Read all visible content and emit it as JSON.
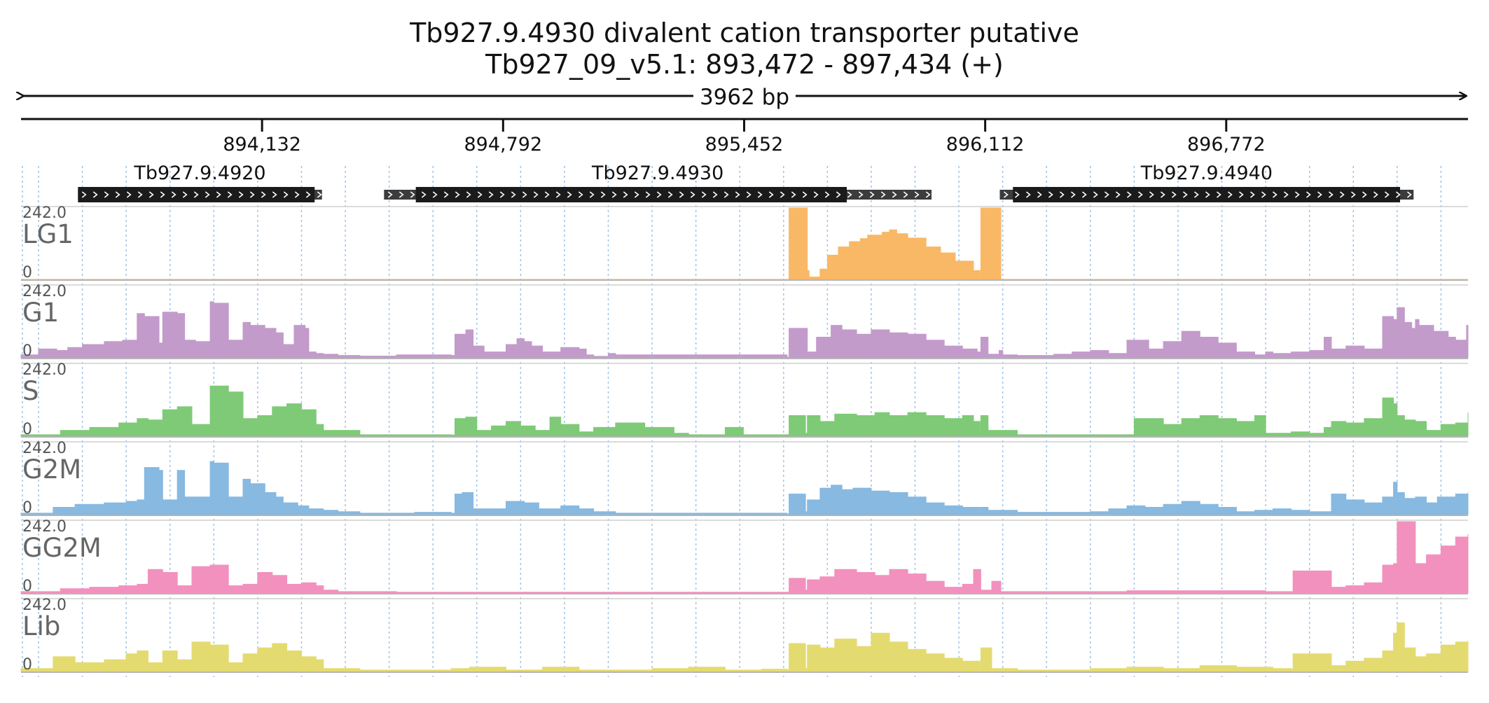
{
  "chart_data": {
    "type": "area",
    "title": "Tb927.9.4930  divalent cation transporter  putative",
    "subtitle": "Tb927_09_v5.1: 893,472 - 897,434 (+)",
    "span_label": "3962 bp",
    "xlim": [
      893472,
      897434
    ],
    "ticks": [
      {
        "value": 894132,
        "label": "894,132"
      },
      {
        "value": 894792,
        "label": "894,792"
      },
      {
        "value": 895452,
        "label": "895,452"
      },
      {
        "value": 896112,
        "label": "896,112"
      },
      {
        "value": 896772,
        "label": "896,772"
      }
    ],
    "grid": true,
    "genes": [
      {
        "name": "Tb927.9.4920",
        "start": 893628,
        "end": 894296,
        "cds_start": 893628,
        "cds_end": 894276,
        "strand": "+"
      },
      {
        "name": "Tb927.9.4930",
        "start": 894466,
        "end": 895965,
        "cds_start": 894553,
        "cds_end": 895733,
        "strand": "+"
      },
      {
        "name": "Tb927.9.4940",
        "start": 896152,
        "end": 897285,
        "cds_start": 896188,
        "cds_end": 897248,
        "strand": "+"
      }
    ],
    "tracks": [
      {
        "name": "LG1",
        "color": "#F9B865",
        "max_label": "242.0",
        "min_label": "0",
        "x": [
          893472,
          895570,
          895575,
          895610,
          895625,
          895630,
          895660,
          895680,
          895710,
          895740,
          895770,
          895790,
          895830,
          895850,
          895870,
          895900,
          895950,
          895990,
          896030,
          896080,
          896098,
          896100,
          896150,
          896155,
          897434
        ],
        "values": [
          0,
          0,
          242,
          242,
          30,
          8,
          35,
          82,
          110,
          128,
          138,
          150,
          160,
          168,
          155,
          140,
          110,
          90,
          62,
          30,
          8,
          242,
          242,
          0,
          0
        ]
      },
      {
        "name": "G1",
        "color": "#C39BCB",
        "max_label": "242.0",
        "min_label": "0",
        "x": [
          893472,
          893510,
          893520,
          893570,
          893600,
          893640,
          893700,
          893750,
          893790,
          893810,
          893850,
          893860,
          893900,
          893920,
          893950,
          893990,
          894000,
          894040,
          894080,
          894100,
          894140,
          894170,
          894190,
          894220,
          894250,
          894260,
          894280,
          894300,
          894340,
          894400,
          894500,
          894550,
          894650,
          894660,
          894690,
          894710,
          894740,
          894800,
          894830,
          894850,
          894870,
          894900,
          894950,
          895000,
          895020,
          895040,
          895080,
          895100,
          895570,
          895575,
          895620,
          895625,
          895650,
          895690,
          895720,
          895760,
          895800,
          895850,
          895900,
          895950,
          896000,
          896050,
          896090,
          896100,
          896120,
          896150,
          896160,
          896200,
          896250,
          896300,
          896350,
          896400,
          896450,
          896500,
          896560,
          896600,
          896650,
          896700,
          896750,
          896800,
          896850,
          896880,
          896900,
          896950,
          897000,
          897040,
          897060,
          897100,
          897150,
          897200,
          897230,
          897240,
          897260,
          897280,
          897290,
          897300,
          897340,
          897380,
          897400,
          897430,
          897434
        ],
        "values": [
          10,
          10,
          30,
          25,
          35,
          45,
          55,
          60,
          150,
          140,
          50,
          155,
          150,
          60,
          55,
          190,
          185,
          60,
          120,
          110,
          100,
          85,
          45,
          110,
          100,
          20,
          15,
          12,
          8,
          6,
          10,
          10,
          8,
          80,
          95,
          40,
          20,
          45,
          65,
          55,
          40,
          20,
          35,
          30,
          10,
          5,
          15,
          10,
          2,
          100,
          100,
          20,
          70,
          110,
          95,
          80,
          95,
          85,
          80,
          60,
          40,
          30,
          20,
          70,
          12,
          25,
          10,
          8,
          8,
          12,
          20,
          25,
          15,
          60,
          30,
          55,
          90,
          70,
          50,
          20,
          10,
          20,
          15,
          20,
          25,
          70,
          30,
          40,
          30,
          140,
          130,
          170,
          120,
          100,
          130,
          110,
          90,
          70,
          60,
          110,
          110
        ]
      },
      {
        "name": "S",
        "color": "#7FCA77",
        "max_label": "242.0",
        "min_label": "0",
        "x": [
          893472,
          893520,
          893580,
          893660,
          893740,
          893790,
          893820,
          893860,
          893900,
          893940,
          893990,
          894040,
          894080,
          894120,
          894160,
          894200,
          894240,
          894280,
          894300,
          894400,
          894500,
          894650,
          894660,
          894690,
          894720,
          894760,
          894800,
          894840,
          894880,
          894920,
          894950,
          895000,
          895040,
          895100,
          895180,
          895260,
          895300,
          895350,
          895400,
          895450,
          895500,
          895570,
          895575,
          895620,
          895625,
          895660,
          895700,
          895760,
          895810,
          895850,
          895900,
          895950,
          896000,
          896050,
          896080,
          896098,
          896100,
          896120,
          896200,
          896300,
          896400,
          896500,
          896520,
          896560,
          896600,
          896650,
          896700,
          896750,
          896800,
          896850,
          896880,
          896950,
          897000,
          897040,
          897060,
          897100,
          897150,
          897200,
          897230,
          897240,
          897260,
          897290,
          897320,
          897360,
          897400,
          897434
        ],
        "values": [
          5,
          5,
          20,
          30,
          45,
          60,
          55,
          90,
          100,
          40,
          170,
          150,
          60,
          70,
          100,
          110,
          90,
          40,
          20,
          5,
          5,
          4,
          60,
          65,
          20,
          35,
          50,
          35,
          20,
          65,
          40,
          15,
          30,
          45,
          30,
          10,
          5,
          5,
          30,
          5,
          5,
          5,
          70,
          10,
          70,
          50,
          75,
          70,
          80,
          70,
          80,
          70,
          60,
          70,
          50,
          10,
          70,
          20,
          5,
          5,
          5,
          5,
          60,
          60,
          40,
          60,
          70,
          60,
          50,
          70,
          10,
          15,
          10,
          30,
          50,
          45,
          60,
          130,
          110,
          70,
          55,
          50,
          20,
          40,
          45,
          80
        ]
      },
      {
        "name": "G2M",
        "color": "#87B9E1",
        "max_label": "242.0",
        "min_label": "0",
        "x": [
          893472,
          893520,
          893560,
          893620,
          893700,
          893760,
          893790,
          893810,
          893850,
          893860,
          893900,
          893920,
          893950,
          893990,
          894000,
          894040,
          894080,
          894100,
          894140,
          894170,
          894190,
          894230,
          894260,
          894300,
          894340,
          894400,
          894500,
          894550,
          894650,
          894660,
          894680,
          894710,
          894740,
          894800,
          894850,
          894890,
          894950,
          895000,
          895040,
          895100,
          895400,
          895570,
          895575,
          895620,
          895625,
          895660,
          895690,
          895720,
          895750,
          895800,
          895850,
          895900,
          895950,
          896000,
          896050,
          896098,
          896100,
          896120,
          896200,
          896300,
          896400,
          896450,
          896500,
          896550,
          896600,
          896650,
          896700,
          896750,
          896800,
          896850,
          896900,
          896950,
          897000,
          897060,
          897100,
          897150,
          897200,
          897230,
          897240,
          897260,
          897290,
          897320,
          897350,
          897400,
          897434
        ],
        "values": [
          5,
          5,
          25,
          35,
          40,
          45,
          50,
          160,
          150,
          50,
          150,
          60,
          60,
          180,
          175,
          60,
          120,
          105,
          75,
          60,
          40,
          30,
          20,
          15,
          10,
          5,
          5,
          8,
          5,
          70,
          75,
          20,
          20,
          45,
          40,
          20,
          30,
          20,
          10,
          5,
          5,
          2,
          70,
          10,
          50,
          90,
          100,
          85,
          90,
          80,
          75,
          60,
          40,
          30,
          25,
          10,
          25,
          15,
          8,
          8,
          10,
          20,
          30,
          25,
          35,
          45,
          35,
          25,
          10,
          15,
          20,
          15,
          10,
          70,
          50,
          40,
          60,
          110,
          75,
          55,
          60,
          40,
          60,
          70,
          75
        ]
      },
      {
        "name": "GG2M",
        "color": "#F291BE",
        "max_label": "242.0",
        "min_label": "0",
        "x": [
          893472,
          893520,
          893580,
          893660,
          893740,
          893790,
          893820,
          893860,
          893900,
          893940,
          893990,
          894040,
          894080,
          894120,
          894160,
          894200,
          894240,
          894280,
          894300,
          894340,
          894500,
          895570,
          895575,
          895620,
          895625,
          895660,
          895700,
          895760,
          895810,
          895850,
          895900,
          895950,
          896000,
          896050,
          896080,
          896098,
          896100,
          896130,
          896155,
          896200,
          896500,
          896700,
          896880,
          896950,
          896955,
          897000,
          897060,
          897100,
          897150,
          897200,
          897230,
          897240,
          897260,
          897290,
          897320,
          897360,
          897400,
          897434
        ],
        "values": [
          5,
          5,
          15,
          20,
          25,
          30,
          80,
          70,
          25,
          90,
          95,
          25,
          30,
          70,
          60,
          30,
          35,
          25,
          10,
          5,
          3,
          3,
          50,
          10,
          45,
          55,
          80,
          70,
          60,
          80,
          65,
          40,
          20,
          30,
          80,
          80,
          10,
          40,
          5,
          5,
          8,
          8,
          5,
          5,
          75,
          75,
          20,
          25,
          35,
          95,
          100,
          242,
          242,
          100,
          130,
          160,
          190,
          200
        ]
      },
      {
        "name": "Lib",
        "color": "#E4DB70",
        "max_label": "242.0",
        "min_label": "0",
        "x": [
          893472,
          893520,
          893560,
          893620,
          893700,
          893760,
          893790,
          893820,
          893860,
          893900,
          893940,
          893990,
          894040,
          894080,
          894120,
          894160,
          894200,
          894240,
          894280,
          894300,
          894400,
          894500,
          894600,
          894650,
          894700,
          894800,
          894900,
          895000,
          895100,
          895200,
          895300,
          895400,
          895500,
          895570,
          895575,
          895620,
          895625,
          895660,
          895700,
          895760,
          895800,
          895850,
          895900,
          895950,
          896000,
          896050,
          896098,
          896100,
          896130,
          896200,
          896400,
          896500,
          896600,
          896700,
          896800,
          896900,
          896950,
          896955,
          897000,
          897060,
          897100,
          897150,
          897200,
          897230,
          897240,
          897260,
          897290,
          897320,
          897360,
          897400,
          897434
        ],
        "values": [
          10,
          10,
          50,
          30,
          40,
          60,
          70,
          30,
          70,
          40,
          100,
          90,
          30,
          60,
          80,
          95,
          70,
          50,
          40,
          10,
          5,
          5,
          5,
          10,
          15,
          5,
          15,
          5,
          5,
          10,
          15,
          5,
          8,
          5,
          95,
          10,
          90,
          80,
          110,
          85,
          130,
          100,
          75,
          60,
          45,
          35,
          10,
          80,
          10,
          5,
          10,
          15,
          10,
          20,
          15,
          10,
          8,
          60,
          60,
          20,
          35,
          45,
          70,
          130,
          165,
          80,
          50,
          60,
          90,
          100,
          105
        ]
      }
    ]
  }
}
